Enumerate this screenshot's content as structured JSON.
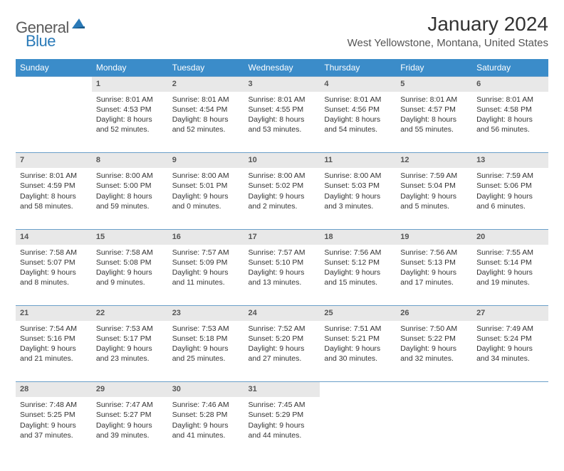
{
  "brand": {
    "part1": "General",
    "part2": "Blue"
  },
  "title": "January 2024",
  "location": "West Yellowstone, Montana, United States",
  "colors": {
    "header_bg": "#3b8cc9",
    "header_text": "#ffffff",
    "daynum_bg": "#e8e8e8",
    "row_border": "#6a9fc9",
    "brand_gray": "#5a5a5a",
    "brand_blue": "#2a7ab8"
  },
  "dayHeaders": [
    "Sunday",
    "Monday",
    "Tuesday",
    "Wednesday",
    "Thursday",
    "Friday",
    "Saturday"
  ],
  "weeks": [
    [
      null,
      {
        "n": "1",
        "sr": "8:01 AM",
        "ss": "4:53 PM",
        "dl": "8 hours and 52 minutes."
      },
      {
        "n": "2",
        "sr": "8:01 AM",
        "ss": "4:54 PM",
        "dl": "8 hours and 52 minutes."
      },
      {
        "n": "3",
        "sr": "8:01 AM",
        "ss": "4:55 PM",
        "dl": "8 hours and 53 minutes."
      },
      {
        "n": "4",
        "sr": "8:01 AM",
        "ss": "4:56 PM",
        "dl": "8 hours and 54 minutes."
      },
      {
        "n": "5",
        "sr": "8:01 AM",
        "ss": "4:57 PM",
        "dl": "8 hours and 55 minutes."
      },
      {
        "n": "6",
        "sr": "8:01 AM",
        "ss": "4:58 PM",
        "dl": "8 hours and 56 minutes."
      }
    ],
    [
      {
        "n": "7",
        "sr": "8:01 AM",
        "ss": "4:59 PM",
        "dl": "8 hours and 58 minutes."
      },
      {
        "n": "8",
        "sr": "8:00 AM",
        "ss": "5:00 PM",
        "dl": "8 hours and 59 minutes."
      },
      {
        "n": "9",
        "sr": "8:00 AM",
        "ss": "5:01 PM",
        "dl": "9 hours and 0 minutes."
      },
      {
        "n": "10",
        "sr": "8:00 AM",
        "ss": "5:02 PM",
        "dl": "9 hours and 2 minutes."
      },
      {
        "n": "11",
        "sr": "8:00 AM",
        "ss": "5:03 PM",
        "dl": "9 hours and 3 minutes."
      },
      {
        "n": "12",
        "sr": "7:59 AM",
        "ss": "5:04 PM",
        "dl": "9 hours and 5 minutes."
      },
      {
        "n": "13",
        "sr": "7:59 AM",
        "ss": "5:06 PM",
        "dl": "9 hours and 6 minutes."
      }
    ],
    [
      {
        "n": "14",
        "sr": "7:58 AM",
        "ss": "5:07 PM",
        "dl": "9 hours and 8 minutes."
      },
      {
        "n": "15",
        "sr": "7:58 AM",
        "ss": "5:08 PM",
        "dl": "9 hours and 9 minutes."
      },
      {
        "n": "16",
        "sr": "7:57 AM",
        "ss": "5:09 PM",
        "dl": "9 hours and 11 minutes."
      },
      {
        "n": "17",
        "sr": "7:57 AM",
        "ss": "5:10 PM",
        "dl": "9 hours and 13 minutes."
      },
      {
        "n": "18",
        "sr": "7:56 AM",
        "ss": "5:12 PM",
        "dl": "9 hours and 15 minutes."
      },
      {
        "n": "19",
        "sr": "7:56 AM",
        "ss": "5:13 PM",
        "dl": "9 hours and 17 minutes."
      },
      {
        "n": "20",
        "sr": "7:55 AM",
        "ss": "5:14 PM",
        "dl": "9 hours and 19 minutes."
      }
    ],
    [
      {
        "n": "21",
        "sr": "7:54 AM",
        "ss": "5:16 PM",
        "dl": "9 hours and 21 minutes."
      },
      {
        "n": "22",
        "sr": "7:53 AM",
        "ss": "5:17 PM",
        "dl": "9 hours and 23 minutes."
      },
      {
        "n": "23",
        "sr": "7:53 AM",
        "ss": "5:18 PM",
        "dl": "9 hours and 25 minutes."
      },
      {
        "n": "24",
        "sr": "7:52 AM",
        "ss": "5:20 PM",
        "dl": "9 hours and 27 minutes."
      },
      {
        "n": "25",
        "sr": "7:51 AM",
        "ss": "5:21 PM",
        "dl": "9 hours and 30 minutes."
      },
      {
        "n": "26",
        "sr": "7:50 AM",
        "ss": "5:22 PM",
        "dl": "9 hours and 32 minutes."
      },
      {
        "n": "27",
        "sr": "7:49 AM",
        "ss": "5:24 PM",
        "dl": "9 hours and 34 minutes."
      }
    ],
    [
      {
        "n": "28",
        "sr": "7:48 AM",
        "ss": "5:25 PM",
        "dl": "9 hours and 37 minutes."
      },
      {
        "n": "29",
        "sr": "7:47 AM",
        "ss": "5:27 PM",
        "dl": "9 hours and 39 minutes."
      },
      {
        "n": "30",
        "sr": "7:46 AM",
        "ss": "5:28 PM",
        "dl": "9 hours and 41 minutes."
      },
      {
        "n": "31",
        "sr": "7:45 AM",
        "ss": "5:29 PM",
        "dl": "9 hours and 44 minutes."
      },
      null,
      null,
      null
    ]
  ],
  "labels": {
    "sunrise": "Sunrise:",
    "sunset": "Sunset:",
    "daylight": "Daylight:"
  }
}
